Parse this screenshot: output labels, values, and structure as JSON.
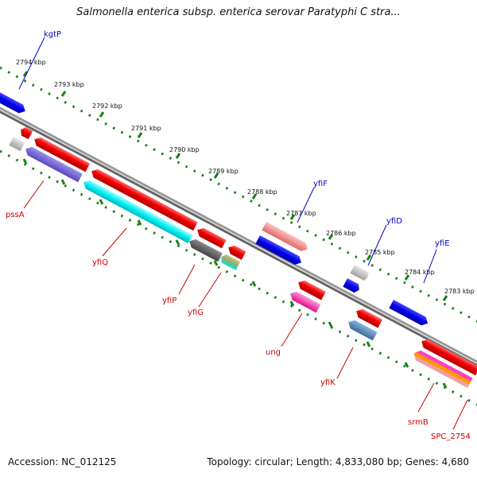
{
  "title": "Salmonella enterica subsp. enterica serovar Paratyphi C stra...",
  "footer": {
    "accession": "Accession: NC_012125",
    "topology": "Topology: circular; Length: 4,833,080 bp; Genes: 4,680"
  },
  "ticks": [
    "2794 kbp",
    "2793 kbp",
    "2792 kbp",
    "2791 kbp",
    "2790 kbp",
    "2789 kbp",
    "2788 kbp",
    "2787 kbp",
    "2786 kbp",
    "2785 kbp",
    "2784 kbp",
    "2783 kbp"
  ],
  "genes_forward": [
    "kgtP",
    "yfiF",
    "yfiD",
    "yfiE"
  ],
  "genes_reverse": [
    "pssA",
    "yfiQ",
    "yfiP",
    "yfiG",
    "ung",
    "yfiK",
    "srmB",
    "SPC_2754"
  ],
  "colors": {
    "forward_label": "#0000cc",
    "reverse_label": "#cc0000",
    "tick": "#1a7f1a",
    "backbone": "#888888"
  }
}
